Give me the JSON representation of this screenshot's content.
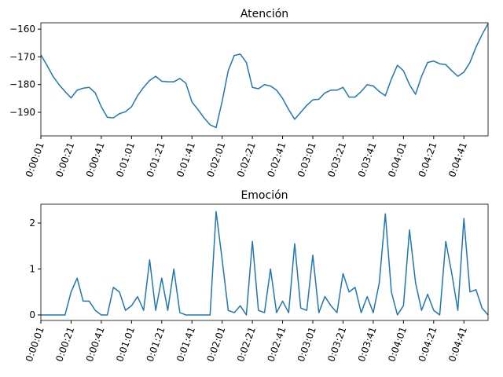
{
  "chart_data": [
    {
      "type": "line",
      "title": "Atención",
      "x": [
        1,
        5,
        9,
        13,
        17,
        21,
        25,
        29,
        33,
        37,
        41,
        45,
        49,
        53,
        57,
        61,
        65,
        69,
        73,
        77,
        81,
        85,
        89,
        93,
        97,
        101,
        105,
        109,
        113,
        117,
        121,
        125,
        129,
        133,
        137,
        141,
        145,
        149,
        153,
        157,
        161,
        165,
        169,
        173,
        177,
        181,
        185,
        189,
        193,
        197,
        201,
        205,
        209,
        213,
        217,
        221,
        225,
        229,
        233,
        237,
        241,
        245,
        249,
        253,
        257,
        261,
        265,
        269,
        273,
        277,
        281,
        285,
        289,
        293,
        297
      ],
      "series": [
        {
          "color": "#1f77b4",
          "values": [
            -169.3,
            -173,
            -177,
            -180,
            -182.5,
            -184.8,
            -182,
            -181.3,
            -181,
            -183,
            -188,
            -191.8,
            -192,
            -190.5,
            -189.8,
            -188,
            -184,
            -181,
            -178.5,
            -177,
            -178.8,
            -179,
            -179,
            -177.8,
            -179.5,
            -186.3,
            -189,
            -192,
            -194.5,
            -195.5,
            -186,
            -175,
            -169.5,
            -169,
            -172,
            -181,
            -181.5,
            -180,
            -180.5,
            -182,
            -185,
            -189,
            -192.5,
            -190,
            -187.5,
            -185.5,
            -185.3,
            -183,
            -182,
            -182,
            -181,
            -184.5,
            -184.5,
            -182.5,
            -180,
            -180.5,
            -182.5,
            -184,
            -178,
            -173,
            -175,
            -180,
            -183.5,
            -177,
            -172,
            -171.5,
            -172.5,
            -172.8,
            -175,
            -177,
            -175.5,
            -172,
            -166.5,
            -162,
            -158
          ]
        }
      ],
      "xlim": [
        1,
        297
      ],
      "xticks": [
        {
          "value": 1,
          "label": "0:00:01"
        },
        {
          "value": 21,
          "label": "0:00:21"
        },
        {
          "value": 41,
          "label": "0:00:41"
        },
        {
          "value": 61,
          "label": "0:01:01"
        },
        {
          "value": 81,
          "label": "0:01:21"
        },
        {
          "value": 101,
          "label": "0:01:41"
        },
        {
          "value": 121,
          "label": "0:02:01"
        },
        {
          "value": 141,
          "label": "0:02:21"
        },
        {
          "value": 161,
          "label": "0:02:41"
        },
        {
          "value": 181,
          "label": "0:03:01"
        },
        {
          "value": 201,
          "label": "0:03:21"
        },
        {
          "value": 221,
          "label": "0:03:41"
        },
        {
          "value": 241,
          "label": "0:04:01"
        },
        {
          "value": 261,
          "label": "0:04:21"
        },
        {
          "value": 281,
          "label": "0:04:41"
        }
      ],
      "ylim": [
        -198.5,
        -157.7
      ],
      "yticks": [
        {
          "value": -160,
          "label": "−160"
        },
        {
          "value": -170,
          "label": "−170"
        },
        {
          "value": -180,
          "label": "−180"
        },
        {
          "value": -190,
          "label": "−190"
        }
      ]
    },
    {
      "type": "line",
      "title": "Emoción",
      "x": [
        1,
        5,
        9,
        13,
        17,
        21,
        25,
        29,
        33,
        37,
        41,
        45,
        49,
        53,
        57,
        61,
        65,
        69,
        73,
        77,
        81,
        85,
        89,
        93,
        97,
        101,
        105,
        109,
        113,
        117,
        121,
        125,
        129,
        133,
        137,
        141,
        145,
        149,
        153,
        157,
        161,
        165,
        169,
        173,
        177,
        181,
        185,
        189,
        193,
        197,
        201,
        205,
        209,
        213,
        217,
        221,
        225,
        229,
        233,
        237,
        241,
        245,
        249,
        253,
        257,
        261,
        265,
        269,
        273,
        277,
        281,
        285,
        289,
        293,
        297
      ],
      "series": [
        {
          "color": "#1f77b4",
          "values": [
            0,
            0,
            0,
            0,
            0,
            0.5,
            0.8,
            0.3,
            0.3,
            0.1,
            0,
            0,
            0.6,
            0.5,
            0.1,
            0.2,
            0.4,
            0.1,
            1.2,
            0.1,
            0.8,
            0.1,
            1.0,
            0.05,
            0,
            0,
            0,
            0,
            0,
            2.25,
            1.2,
            0.1,
            0.05,
            0.2,
            0,
            1.6,
            0.1,
            0.05,
            1.0,
            0.05,
            0.3,
            0.05,
            1.55,
            0.15,
            0.1,
            1.3,
            0.05,
            0.4,
            0.2,
            0.05,
            0.9,
            0.5,
            0.6,
            0.05,
            0.4,
            0.05,
            0.7,
            2.2,
            0.5,
            0,
            0.2,
            1.85,
            0.7,
            0.1,
            0.45,
            0.1,
            0,
            1.6,
            0.9,
            0.1,
            2.1,
            0.5,
            0.55,
            0.15,
            0
          ]
        }
      ],
      "xlim": [
        1,
        297
      ],
      "xticks": [
        {
          "value": 1,
          "label": "0:00:01"
        },
        {
          "value": 21,
          "label": "0:00:21"
        },
        {
          "value": 41,
          "label": "0:00:41"
        },
        {
          "value": 61,
          "label": "0:01:01"
        },
        {
          "value": 81,
          "label": "0:01:21"
        },
        {
          "value": 101,
          "label": "0:01:41"
        },
        {
          "value": 121,
          "label": "0:02:01"
        },
        {
          "value": 141,
          "label": "0:02:21"
        },
        {
          "value": 161,
          "label": "0:02:41"
        },
        {
          "value": 181,
          "label": "0:03:01"
        },
        {
          "value": 201,
          "label": "0:03:21"
        },
        {
          "value": 221,
          "label": "0:03:41"
        },
        {
          "value": 241,
          "label": "0:04:01"
        },
        {
          "value": 261,
          "label": "0:04:21"
        },
        {
          "value": 281,
          "label": "0:04:41"
        }
      ],
      "ylim": [
        -0.12,
        2.41
      ],
      "yticks": [
        0,
        1,
        2
      ]
    }
  ]
}
